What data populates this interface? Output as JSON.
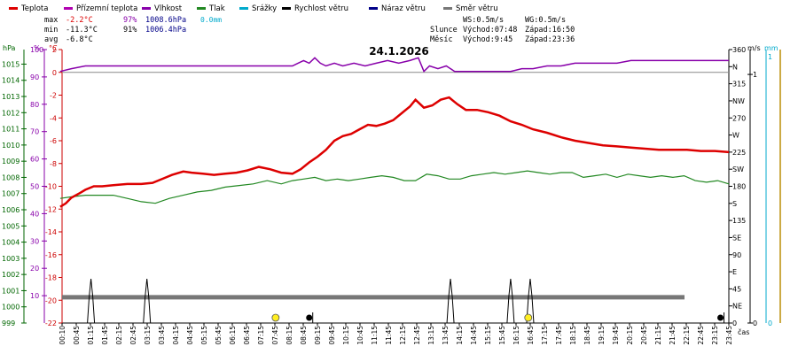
{
  "legend": [
    {
      "label": "Teplota",
      "color": "#dd0000"
    },
    {
      "label": "Přízemní teplota",
      "color": "#b000b0"
    },
    {
      "label": "Vlhkost",
      "color": "#8800aa"
    },
    {
      "label": "Tlak",
      "color": "#228822"
    },
    {
      "label": "Srážky",
      "color": "#00aacc"
    },
    {
      "label": "Rychlost větru",
      "color": "#000000"
    },
    {
      "label": "Náraz větru",
      "color": "#000088"
    },
    {
      "label": "Směr větru",
      "color": "#777777"
    }
  ],
  "stats": [
    {
      "label": "max",
      "temp": "-2.2°C",
      "hum": "97%",
      "press": "1008.6hPa",
      "rain": "0.0mm"
    },
    {
      "label": "min",
      "temp": "-11.3°C",
      "hum": "91%",
      "press": "1006.4hPa"
    },
    {
      "label": "avg",
      "temp": "-6.8°C"
    }
  ],
  "wind_info": {
    "ws": "WS:0.5m/s",
    "wg": "WG:0.5m/s"
  },
  "sun_info": {
    "label": "Slunce",
    "rise": "Východ:07:48",
    "set": "Západ:16:50"
  },
  "moon_info": {
    "label": "Měsíc",
    "rise": "Východ:9:45",
    "set": "Západ:23:36"
  },
  "date_title": "24.1.2026",
  "axis_units": {
    "hpa": "hPa",
    "pct": "%",
    "temp": "°C",
    "ms": "m/s",
    "mm": "mm",
    "time": "čas"
  },
  "chart_data": {
    "type": "line",
    "title": "24.1.2026",
    "x_ticks": [
      "00:10",
      "00:45",
      "01:15",
      "01:45",
      "02:15",
      "02:45",
      "03:15",
      "03:45",
      "04:15",
      "04:45",
      "05:15",
      "05:45",
      "06:15",
      "06:45",
      "07:15",
      "07:45",
      "08:15",
      "08:45",
      "09:15",
      "09:45",
      "10:15",
      "10:45",
      "11:15",
      "11:45",
      "12:15",
      "12:45",
      "13:15",
      "13:45",
      "14:15",
      "14:45",
      "15:15",
      "15:45",
      "16:15",
      "16:45",
      "17:15",
      "17:45",
      "18:15",
      "18:45",
      "19:15",
      "19:45",
      "20:15",
      "20:45",
      "21:15",
      "21:45",
      "22:15",
      "22:45",
      "23:15",
      "23:45"
    ],
    "x_range_hours": [
      0.1667,
      24
    ],
    "pressure_axis": {
      "unit": "hPa",
      "ticks": [
        999,
        1000,
        1001,
        1002,
        1003,
        1004,
        1005,
        1006,
        1007,
        1008,
        1009,
        1010,
        1011,
        1012,
        1013,
        1014,
        1015
      ],
      "range": [
        999,
        1015.9
      ]
    },
    "humidity_axis": {
      "unit": "%",
      "ticks": [
        10,
        20,
        30,
        40,
        50,
        60,
        70,
        80,
        90,
        100
      ],
      "range": [
        0,
        100
      ]
    },
    "temperature_axis": {
      "unit": "°C",
      "ticks": [
        2,
        0,
        -2,
        -4,
        -6,
        -8,
        -10,
        -12,
        -14,
        -16,
        -18,
        -20,
        -22
      ],
      "range": [
        -22,
        2
      ]
    },
    "direction_axis": {
      "ticks": [
        "360",
        "N",
        "315",
        "NW",
        "270",
        "W",
        "225",
        "SW",
        "180",
        "S",
        "135",
        "SE",
        "90",
        "E",
        "45",
        "NE",
        "0"
      ],
      "range_deg": [
        0,
        360
      ]
    },
    "wind_speed_axis": {
      "unit": "m/s",
      "ticks": [
        "1",
        "0"
      ],
      "range": [
        0,
        1.1
      ]
    },
    "rain_axis": {
      "unit": "mm",
      "ticks": [
        "1",
        "0"
      ],
      "range": [
        0,
        1.1
      ]
    },
    "series": [
      {
        "name": "Teplota",
        "color": "#dd0000",
        "unit": "°C",
        "points": [
          [
            0.1,
            -11.8
          ],
          [
            0.3,
            -11.5
          ],
          [
            0.5,
            -11.0
          ],
          [
            0.8,
            -10.6
          ],
          [
            1.0,
            -10.3
          ],
          [
            1.3,
            -10.0
          ],
          [
            1.6,
            -10.0
          ],
          [
            2.0,
            -9.9
          ],
          [
            2.5,
            -9.8
          ],
          [
            3.0,
            -9.8
          ],
          [
            3.4,
            -9.7
          ],
          [
            3.8,
            -9.3
          ],
          [
            4.1,
            -9.0
          ],
          [
            4.5,
            -8.7
          ],
          [
            4.8,
            -8.8
          ],
          [
            5.2,
            -8.9
          ],
          [
            5.6,
            -9.0
          ],
          [
            6.0,
            -8.9
          ],
          [
            6.4,
            -8.8
          ],
          [
            6.8,
            -8.6
          ],
          [
            7.2,
            -8.3
          ],
          [
            7.6,
            -8.5
          ],
          [
            8.0,
            -8.8
          ],
          [
            8.4,
            -8.9
          ],
          [
            8.7,
            -8.5
          ],
          [
            9.0,
            -7.9
          ],
          [
            9.3,
            -7.4
          ],
          [
            9.6,
            -6.8
          ],
          [
            9.9,
            -6.0
          ],
          [
            10.2,
            -5.6
          ],
          [
            10.5,
            -5.4
          ],
          [
            10.8,
            -5.0
          ],
          [
            11.1,
            -4.6
          ],
          [
            11.4,
            -4.7
          ],
          [
            11.7,
            -4.5
          ],
          [
            12.0,
            -4.2
          ],
          [
            12.3,
            -3.6
          ],
          [
            12.6,
            -3.0
          ],
          [
            12.8,
            -2.4
          ],
          [
            13.1,
            -3.1
          ],
          [
            13.4,
            -2.9
          ],
          [
            13.7,
            -2.4
          ],
          [
            14.0,
            -2.2
          ],
          [
            14.3,
            -2.8
          ],
          [
            14.6,
            -3.3
          ],
          [
            15.0,
            -3.3
          ],
          [
            15.4,
            -3.5
          ],
          [
            15.8,
            -3.8
          ],
          [
            16.2,
            -4.3
          ],
          [
            16.6,
            -4.6
          ],
          [
            17.0,
            -5.0
          ],
          [
            17.5,
            -5.3
          ],
          [
            18.0,
            -5.7
          ],
          [
            18.5,
            -6.0
          ],
          [
            19.0,
            -6.2
          ],
          [
            19.5,
            -6.4
          ],
          [
            20.0,
            -6.5
          ],
          [
            20.5,
            -6.6
          ],
          [
            21.0,
            -6.7
          ],
          [
            21.5,
            -6.8
          ],
          [
            22.0,
            -6.8
          ],
          [
            22.5,
            -6.8
          ],
          [
            23.0,
            -6.9
          ],
          [
            23.5,
            -6.9
          ],
          [
            24.0,
            -7.0
          ]
        ]
      },
      {
        "name": "Vlhkost",
        "color": "#8800aa",
        "unit": "%",
        "points": [
          [
            0.1,
            92
          ],
          [
            0.5,
            93
          ],
          [
            1.0,
            94
          ],
          [
            1.5,
            94
          ],
          [
            2.0,
            94
          ],
          [
            2.5,
            94
          ],
          [
            3.0,
            94
          ],
          [
            3.5,
            94
          ],
          [
            4.0,
            94
          ],
          [
            4.5,
            94
          ],
          [
            5.0,
            94
          ],
          [
            5.5,
            94
          ],
          [
            6.0,
            94
          ],
          [
            6.5,
            94
          ],
          [
            7.0,
            94
          ],
          [
            7.5,
            94
          ],
          [
            8.0,
            94
          ],
          [
            8.4,
            94
          ],
          [
            8.6,
            95
          ],
          [
            8.8,
            96
          ],
          [
            9.0,
            95
          ],
          [
            9.2,
            97
          ],
          [
            9.4,
            95
          ],
          [
            9.6,
            94
          ],
          [
            9.9,
            95
          ],
          [
            10.2,
            94
          ],
          [
            10.6,
            95
          ],
          [
            11.0,
            94
          ],
          [
            11.4,
            95
          ],
          [
            11.8,
            96
          ],
          [
            12.2,
            95
          ],
          [
            12.6,
            96
          ],
          [
            12.9,
            97
          ],
          [
            13.1,
            92
          ],
          [
            13.3,
            94
          ],
          [
            13.6,
            93
          ],
          [
            13.9,
            94
          ],
          [
            14.2,
            92
          ],
          [
            14.5,
            92
          ],
          [
            14.9,
            92
          ],
          [
            15.3,
            92
          ],
          [
            15.8,
            92
          ],
          [
            16.2,
            92
          ],
          [
            16.6,
            93
          ],
          [
            17.0,
            93
          ],
          [
            17.5,
            94
          ],
          [
            18.0,
            94
          ],
          [
            18.5,
            95
          ],
          [
            19.0,
            95
          ],
          [
            19.5,
            95
          ],
          [
            20.0,
            95
          ],
          [
            20.5,
            96
          ],
          [
            21.0,
            96
          ],
          [
            21.5,
            96
          ],
          [
            22.0,
            96
          ],
          [
            22.5,
            96
          ],
          [
            23.0,
            96
          ],
          [
            23.5,
            96
          ],
          [
            24.0,
            96
          ]
        ]
      },
      {
        "name": "Tlak",
        "color": "#228822",
        "unit": "hPa",
        "points": [
          [
            0.1,
            1006.7
          ],
          [
            0.5,
            1006.8
          ],
          [
            1.0,
            1006.9
          ],
          [
            1.5,
            1006.9
          ],
          [
            2.0,
            1006.9
          ],
          [
            2.5,
            1006.7
          ],
          [
            3.0,
            1006.5
          ],
          [
            3.5,
            1006.4
          ],
          [
            4.0,
            1006.7
          ],
          [
            4.5,
            1006.9
          ],
          [
            5.0,
            1007.1
          ],
          [
            5.5,
            1007.2
          ],
          [
            6.0,
            1007.4
          ],
          [
            6.5,
            1007.5
          ],
          [
            7.0,
            1007.6
          ],
          [
            7.5,
            1007.8
          ],
          [
            8.0,
            1007.6
          ],
          [
            8.4,
            1007.8
          ],
          [
            8.8,
            1007.9
          ],
          [
            9.2,
            1008.0
          ],
          [
            9.6,
            1007.8
          ],
          [
            10.0,
            1007.9
          ],
          [
            10.4,
            1007.8
          ],
          [
            10.8,
            1007.9
          ],
          [
            11.2,
            1008.0
          ],
          [
            11.6,
            1008.1
          ],
          [
            12.0,
            1008.0
          ],
          [
            12.4,
            1007.8
          ],
          [
            12.8,
            1007.8
          ],
          [
            13.2,
            1008.2
          ],
          [
            13.6,
            1008.1
          ],
          [
            14.0,
            1007.9
          ],
          [
            14.4,
            1007.9
          ],
          [
            14.8,
            1008.1
          ],
          [
            15.2,
            1008.2
          ],
          [
            15.6,
            1008.3
          ],
          [
            16.0,
            1008.2
          ],
          [
            16.4,
            1008.3
          ],
          [
            16.8,
            1008.4
          ],
          [
            17.2,
            1008.3
          ],
          [
            17.6,
            1008.2
          ],
          [
            18.0,
            1008.3
          ],
          [
            18.4,
            1008.3
          ],
          [
            18.8,
            1008.0
          ],
          [
            19.2,
            1008.1
          ],
          [
            19.6,
            1008.2
          ],
          [
            20.0,
            1008.0
          ],
          [
            20.4,
            1008.2
          ],
          [
            20.8,
            1008.1
          ],
          [
            21.2,
            1008.0
          ],
          [
            21.6,
            1008.1
          ],
          [
            22.0,
            1008.0
          ],
          [
            22.4,
            1008.1
          ],
          [
            22.8,
            1007.8
          ],
          [
            23.2,
            1007.7
          ],
          [
            23.6,
            1007.8
          ],
          [
            24.0,
            1007.6
          ]
        ]
      },
      {
        "name": "Směr větru",
        "color": "#777777",
        "unit": "°",
        "value_deg": 34
      },
      {
        "name": "Rychlost větru",
        "color": "#000000",
        "unit": "m/s",
        "spikes_hours": [
          1.2,
          3.2,
          14.05,
          16.2,
          16.9
        ],
        "markers_hours": [
          9.0,
          23.7
        ]
      },
      {
        "name": "Srážky",
        "color": "#00aacc",
        "unit": "mm",
        "values": [
          0
        ]
      }
    ],
    "sun_markers_hours": [
      7.8,
      16.83
    ],
    "reference_lines": [
      {
        "axis": "temperature",
        "value": 0
      },
      {
        "axis": "humidity",
        "value": 90
      }
    ],
    "grid": false,
    "legend_position": "top"
  }
}
